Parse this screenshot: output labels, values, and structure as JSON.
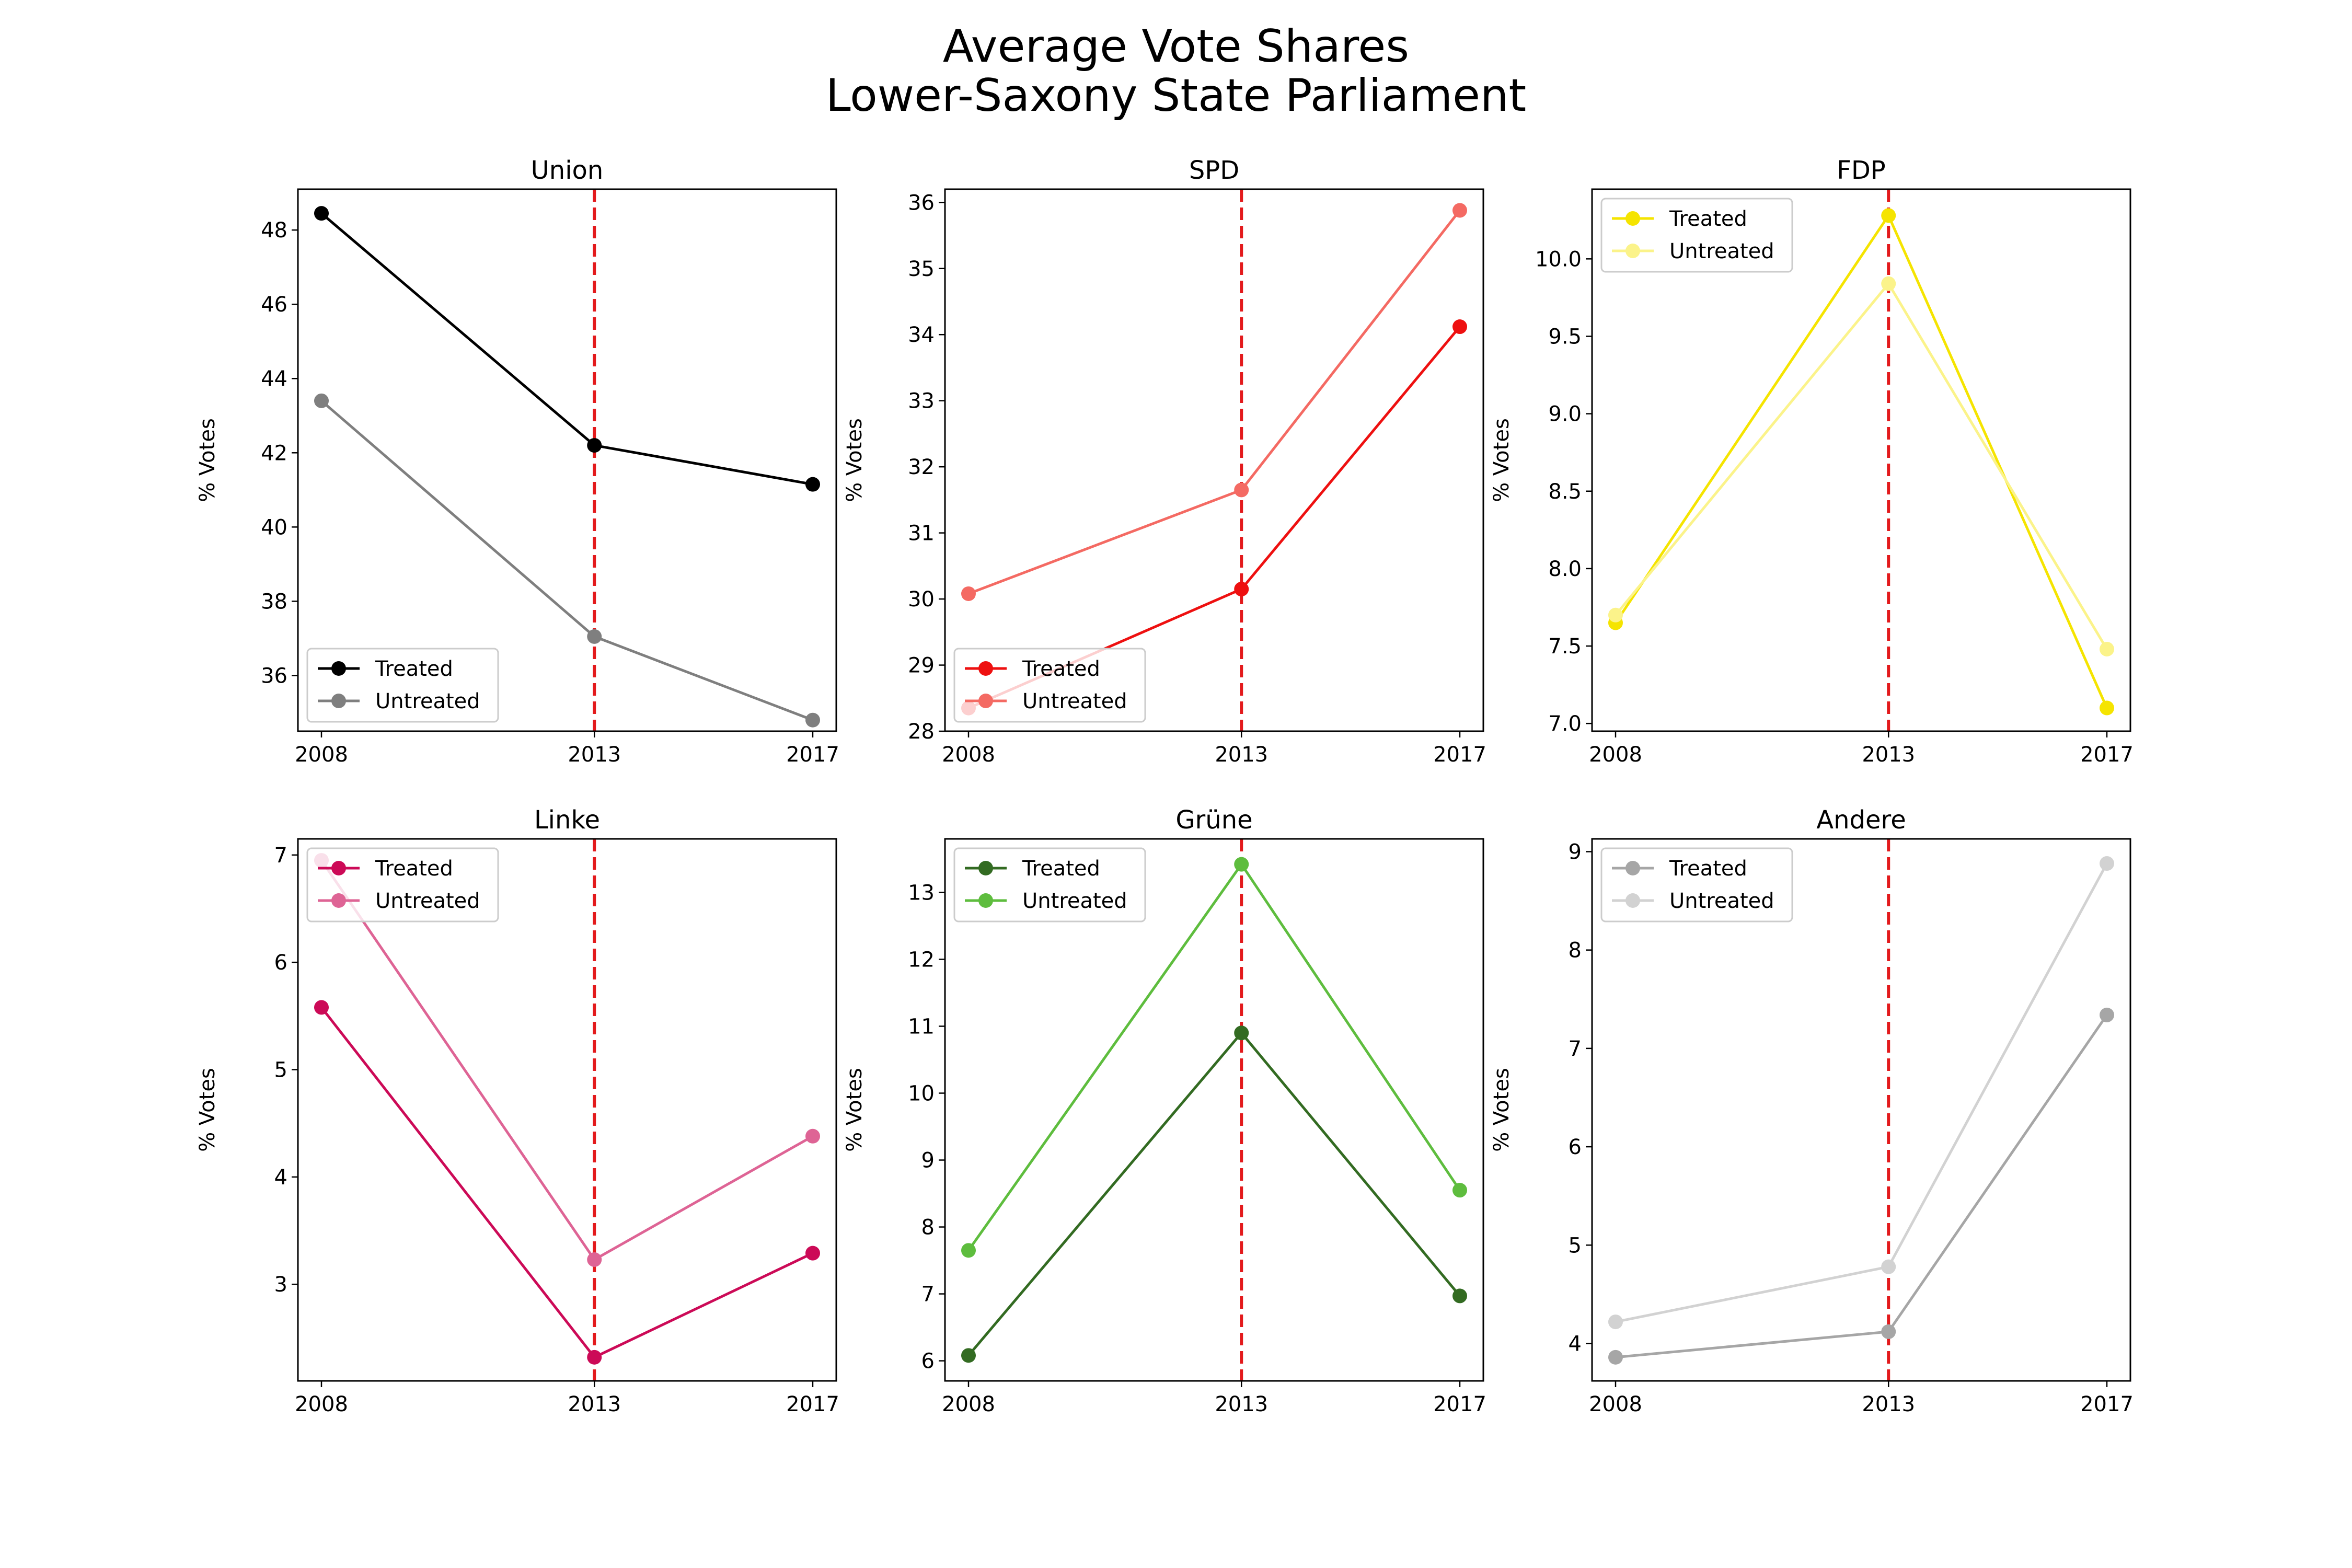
{
  "figure": {
    "title_line1": "Average Vote Shares",
    "title_line2": "Lower-Saxony State Parliament"
  },
  "chart_data": [
    {
      "type": "line",
      "title": "Union",
      "ylabel": "% Votes",
      "x": [
        2008,
        2013,
        2017
      ],
      "xticks": [
        "2008",
        "2013",
        "2017"
      ],
      "ylim": [
        34.5,
        49.1
      ],
      "yticks": [
        36,
        38,
        40,
        42,
        44,
        46,
        48
      ],
      "vline": 2013,
      "vline_color": "#e31a1c",
      "legend": "lower left",
      "series": [
        {
          "name": "Treated",
          "color": "#000000",
          "values": [
            48.45,
            42.2,
            41.15
          ]
        },
        {
          "name": "Untreated",
          "color": "#7f7f7f",
          "values": [
            43.4,
            37.05,
            34.8
          ]
        }
      ]
    },
    {
      "type": "line",
      "title": "SPD",
      "ylabel": "% Votes",
      "x": [
        2008,
        2013,
        2017
      ],
      "xticks": [
        "2008",
        "2013",
        "2017"
      ],
      "ylim": [
        28.0,
        36.2
      ],
      "yticks": [
        28,
        29,
        30,
        31,
        32,
        33,
        34,
        35,
        36
      ],
      "vline": 2013,
      "vline_color": "#e31a1c",
      "legend": "lower left",
      "series": [
        {
          "name": "Treated",
          "color": "#ee1010",
          "values": [
            28.35,
            30.15,
            34.12
          ]
        },
        {
          "name": "Untreated",
          "color": "#f46a63",
          "values": [
            30.08,
            31.65,
            35.88
          ]
        }
      ]
    },
    {
      "type": "line",
      "title": "FDP",
      "ylabel": "% Votes",
      "x": [
        2008,
        2013,
        2017
      ],
      "xticks": [
        "2008",
        "2013",
        "2017"
      ],
      "ylim": [
        6.95,
        10.45
      ],
      "yticks": [
        7.0,
        7.5,
        8.0,
        8.5,
        9.0,
        9.5,
        10.0
      ],
      "vline": 2013,
      "vline_color": "#e31a1c",
      "legend": "upper left",
      "series": [
        {
          "name": "Treated",
          "color": "#f5e400",
          "values": [
            7.65,
            10.28,
            7.1
          ]
        },
        {
          "name": "Untreated",
          "color": "#fbf38a",
          "values": [
            7.7,
            9.84,
            7.48
          ]
        }
      ]
    },
    {
      "type": "line",
      "title": "Linke",
      "ylabel": "% Votes",
      "x": [
        2008,
        2013,
        2017
      ],
      "xticks": [
        "2008",
        "2013",
        "2017"
      ],
      "ylim": [
        2.1,
        7.15
      ],
      "yticks": [
        3,
        4,
        5,
        6,
        7
      ],
      "vline": 2013,
      "vline_color": "#e31a1c",
      "legend": "upper left",
      "series": [
        {
          "name": "Treated",
          "color": "#cc0a57",
          "values": [
            5.58,
            2.32,
            3.29
          ]
        },
        {
          "name": "Untreated",
          "color": "#de6495",
          "values": [
            6.95,
            3.23,
            4.38
          ]
        }
      ]
    },
    {
      "type": "line",
      "title": "Grüne",
      "ylabel": "% Votes",
      "x": [
        2008,
        2013,
        2017
      ],
      "xticks": [
        "2008",
        "2013",
        "2017"
      ],
      "ylim": [
        5.7,
        13.8
      ],
      "yticks": [
        6,
        7,
        8,
        9,
        10,
        11,
        12,
        13
      ],
      "vline": 2013,
      "vline_color": "#e31a1c",
      "legend": "upper left",
      "series": [
        {
          "name": "Treated",
          "color": "#336b22",
          "values": [
            6.08,
            10.9,
            6.97
          ]
        },
        {
          "name": "Untreated",
          "color": "#5ebd3e",
          "values": [
            7.65,
            13.42,
            8.55
          ]
        }
      ]
    },
    {
      "type": "line",
      "title": "Andere",
      "ylabel": "% Votes",
      "x": [
        2008,
        2013,
        2017
      ],
      "xticks": [
        "2008",
        "2013",
        "2017"
      ],
      "ylim": [
        3.62,
        9.13
      ],
      "yticks": [
        4,
        5,
        6,
        7,
        8,
        9
      ],
      "vline": 2013,
      "vline_color": "#e31a1c",
      "legend": "upper left",
      "series": [
        {
          "name": "Treated",
          "color": "#a6a6a6",
          "values": [
            3.86,
            4.12,
            7.34
          ]
        },
        {
          "name": "Untreated",
          "color": "#d2d2d2",
          "values": [
            4.22,
            4.78,
            8.88
          ]
        }
      ]
    }
  ]
}
